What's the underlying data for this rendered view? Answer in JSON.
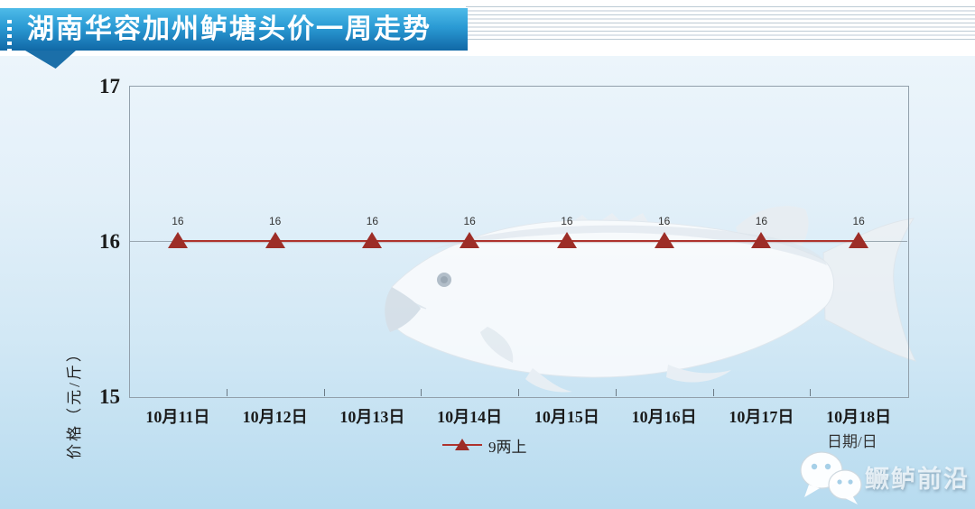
{
  "banner": {
    "title": "湖南华容加州鲈塘头价一周走势"
  },
  "chart_data": {
    "type": "line",
    "title": "湖南华容加州鲈塘头价一周走势",
    "categories": [
      "10月11日",
      "10月12日",
      "10月13日",
      "10月14日",
      "10月15日",
      "10月16日",
      "10月17日",
      "10月18日"
    ],
    "series": [
      {
        "name": "9两上",
        "values": [
          16,
          16,
          16,
          16,
          16,
          16,
          16,
          16
        ],
        "color": "#ae332d",
        "marker": "triangle",
        "marker_color": "#9d2d27"
      }
    ],
    "ylabel": "价格（元/斤）",
    "xlabel": "日期/日",
    "ylim": [
      15,
      17
    ],
    "yticks": [
      17,
      16,
      15
    ],
    "gridlines_y": [
      16
    ],
    "grid": "horizontal-at-16-only",
    "legend_position": "bottom-center"
  },
  "watermark": {
    "text": "鳜鲈前沿",
    "icon": "wechat-icon"
  },
  "colors": {
    "banner_top": "#4ebbe8",
    "banner_bottom": "#1168a6",
    "banner_tail": "#1b6fa9",
    "background_bottom": "#b7dbef",
    "plot_border": "#92a0ab",
    "series_line": "#ae332d",
    "marker": "#9d2d27",
    "stripe_line": "#bccad4"
  }
}
